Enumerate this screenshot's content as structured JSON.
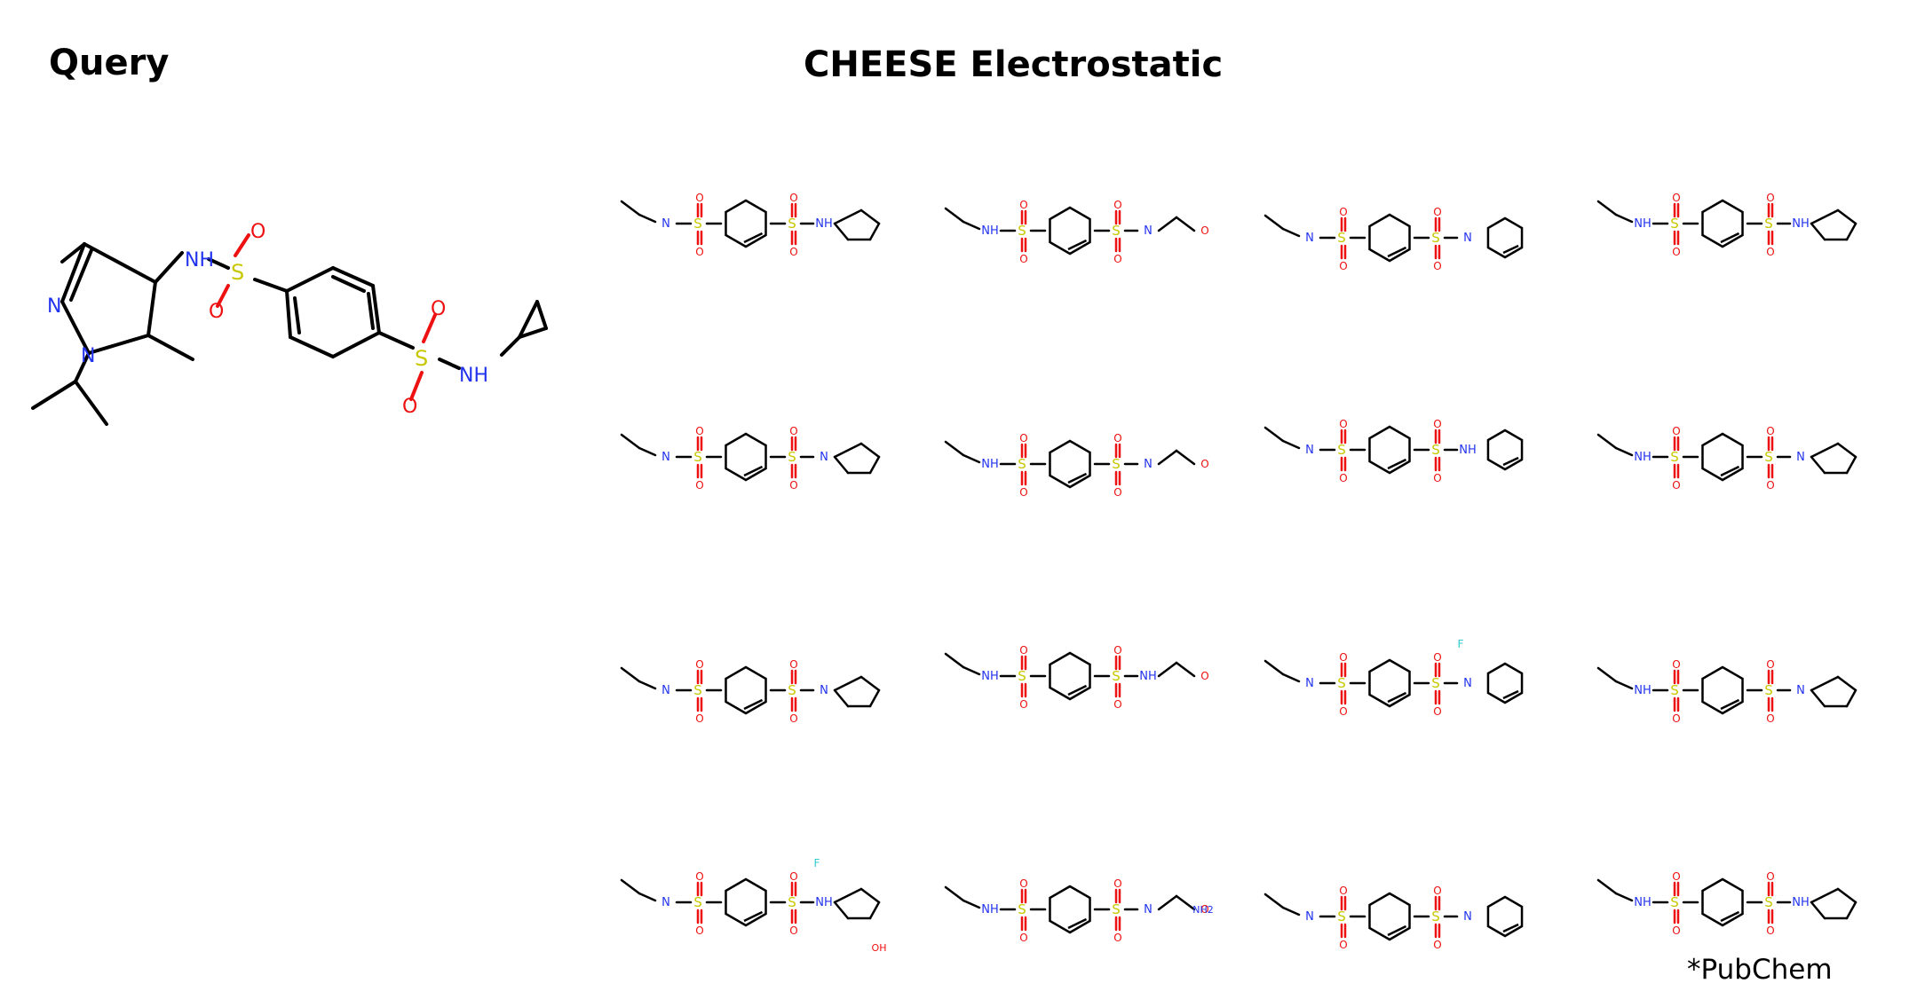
{
  "query_title": "Query",
  "results_title": "CHEESE Electrostatic",
  "footnote": "*PubChem",
  "atom_colors": {
    "N": "#2233ee",
    "O": "#ee1111",
    "S": "#c8c800",
    "F": "#33cccc",
    "C": "#000000"
  },
  "query_labels": {
    "nh1": "NH",
    "nh2": "NH",
    "n1": "N",
    "n2": "N",
    "s1": "S",
    "s2": "S",
    "o": "O"
  },
  "result_labels": {
    "nh": "NH",
    "n": "N",
    "s": "S",
    "o": "O",
    "f": "F",
    "nh2": "NH2",
    "oh": "OH"
  },
  "result_count": 16
}
